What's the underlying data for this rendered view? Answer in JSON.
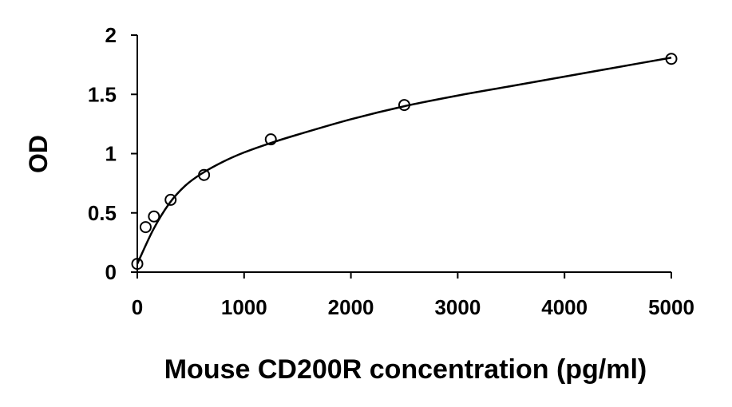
{
  "chart_data": {
    "type": "scatter",
    "title": "",
    "xlabel": "Mouse CD200R concentration (pg/ml)",
    "ylabel": "OD",
    "xlim": [
      0,
      5000
    ],
    "ylim": [
      0,
      2
    ],
    "x_ticks": [
      0,
      1000,
      2000,
      3000,
      4000,
      5000
    ],
    "y_ticks": [
      0,
      0.5,
      1,
      1.5,
      2
    ],
    "y_tick_labels": [
      "0",
      "0.5",
      "1",
      "1.5",
      "2"
    ],
    "x_tick_labels": [
      "0",
      "1000",
      "2000",
      "3000",
      "4000",
      "5000"
    ],
    "grid": false,
    "legend": "none",
    "series": [
      {
        "marker": "open-circle",
        "x": [
          0,
          78,
          156,
          312,
          625,
          1250,
          2500,
          5000
        ],
        "y": [
          0.07,
          0.38,
          0.47,
          0.61,
          0.82,
          1.12,
          1.41,
          1.8
        ]
      }
    ],
    "trend_line": {
      "style": "smooth",
      "x": [
        0,
        150,
        300,
        450,
        600,
        800,
        1000,
        1250,
        1500,
        2000,
        2500,
        3000,
        3500,
        4000,
        4500,
        5000
      ],
      "y": [
        0.07,
        0.36,
        0.58,
        0.73,
        0.83,
        0.93,
        1.01,
        1.09,
        1.16,
        1.29,
        1.4,
        1.49,
        1.57,
        1.65,
        1.73,
        1.81
      ]
    },
    "colors": {
      "marker": "#000000",
      "line": "#000000",
      "axis": "#000000"
    }
  }
}
